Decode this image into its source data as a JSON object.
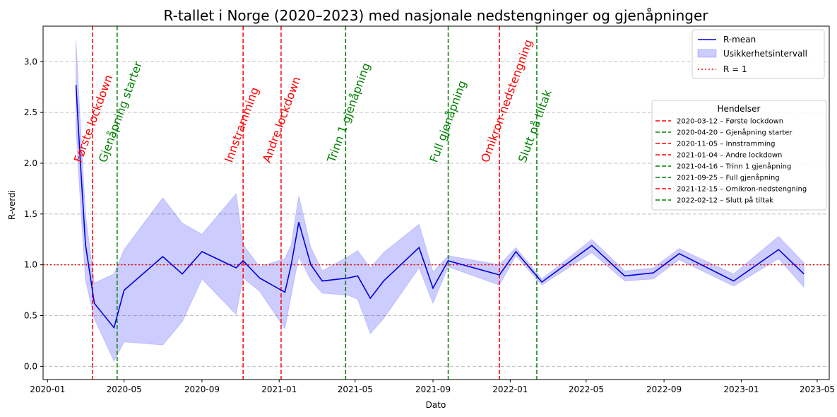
{
  "chart_data": {
    "type": "line",
    "title": "R-tallet i Norge (2020–2023) med nasjonale nedstengninger og gjenåpninger",
    "xlabel": "Dato",
    "ylabel": "R-verdi",
    "xlim": [
      "2019-12-25",
      "2023-05-20"
    ],
    "ylim": [
      -0.13,
      3.35
    ],
    "grid": "y-dashed",
    "x_ticks": [
      {
        "date": "2020-01-01",
        "label": "2020-01"
      },
      {
        "date": "2020-05-01",
        "label": "2020-05"
      },
      {
        "date": "2020-09-01",
        "label": "2020-09"
      },
      {
        "date": "2021-01-01",
        "label": "2021-01"
      },
      {
        "date": "2021-05-01",
        "label": "2021-05"
      },
      {
        "date": "2021-09-01",
        "label": "2021-09"
      },
      {
        "date": "2022-01-01",
        "label": "2022-01"
      },
      {
        "date": "2022-05-01",
        "label": "2022-05"
      },
      {
        "date": "2022-09-01",
        "label": "2022-09"
      },
      {
        "date": "2023-01-01",
        "label": "2023-01"
      },
      {
        "date": "2023-05-01",
        "label": "2023-05"
      }
    ],
    "y_ticks": [
      {
        "value": 0.0,
        "label": "0.0"
      },
      {
        "value": 0.5,
        "label": "0.5"
      },
      {
        "value": 1.0,
        "label": "1.0"
      },
      {
        "value": 1.5,
        "label": "1.5"
      },
      {
        "value": 2.0,
        "label": "2.0"
      },
      {
        "value": 2.5,
        "label": "2.5"
      },
      {
        "value": 3.0,
        "label": "3.0"
      }
    ],
    "series": [
      {
        "name": "R-mean",
        "color": "#0000dd",
        "points": [
          {
            "date": "2020-02-15",
            "mean": 2.77,
            "lower": 2.35,
            "upper": 3.21
          },
          {
            "date": "2020-02-21",
            "mean": 2.1,
            "lower": 1.7,
            "upper": 2.5
          },
          {
            "date": "2020-03-01",
            "mean": 1.2,
            "lower": 0.85,
            "upper": 1.5
          },
          {
            "date": "2020-03-15",
            "mean": 0.62,
            "lower": 0.47,
            "upper": 0.82
          },
          {
            "date": "2020-04-15",
            "mean": 0.38,
            "lower": 0.05,
            "upper": 0.91
          },
          {
            "date": "2020-05-01",
            "mean": 0.75,
            "lower": 0.24,
            "upper": 1.15
          },
          {
            "date": "2020-07-01",
            "mean": 1.08,
            "lower": 0.21,
            "upper": 1.66
          },
          {
            "date": "2020-08-01",
            "mean": 0.91,
            "lower": 0.44,
            "upper": 1.41
          },
          {
            "date": "2020-09-01",
            "mean": 1.13,
            "lower": 0.86,
            "upper": 1.3
          },
          {
            "date": "2020-10-25",
            "mean": 0.97,
            "lower": 0.51,
            "upper": 1.7
          },
          {
            "date": "2020-11-05",
            "mean": 1.04,
            "lower": 0.87,
            "upper": 1.2
          },
          {
            "date": "2020-12-01",
            "mean": 0.87,
            "lower": 0.74,
            "upper": 0.98
          },
          {
            "date": "2021-01-10",
            "mean": 0.73,
            "lower": 0.37,
            "upper": 1.06
          },
          {
            "date": "2021-01-20",
            "mean": 1.0,
            "lower": 0.7,
            "upper": 1.2
          },
          {
            "date": "2021-02-01",
            "mean": 1.42,
            "lower": 1.08,
            "upper": 1.68
          },
          {
            "date": "2021-02-20",
            "mean": 1.0,
            "lower": 0.85,
            "upper": 1.17
          },
          {
            "date": "2021-03-10",
            "mean": 0.84,
            "lower": 0.72,
            "upper": 0.94
          },
          {
            "date": "2021-04-20",
            "mean": 0.87,
            "lower": 0.7,
            "upper": 1.08
          },
          {
            "date": "2021-05-05",
            "mean": 0.89,
            "lower": 0.66,
            "upper": 1.14
          },
          {
            "date": "2021-05-25",
            "mean": 0.67,
            "lower": 0.32,
            "upper": 0.97
          },
          {
            "date": "2021-06-15",
            "mean": 0.84,
            "lower": 0.47,
            "upper": 1.12
          },
          {
            "date": "2021-08-10",
            "mean": 1.17,
            "lower": 0.97,
            "upper": 1.4
          },
          {
            "date": "2021-09-01",
            "mean": 0.77,
            "lower": 0.62,
            "upper": 0.93
          },
          {
            "date": "2021-09-25",
            "mean": 1.04,
            "lower": 0.98,
            "upper": 1.09
          },
          {
            "date": "2021-12-15",
            "mean": 0.9,
            "lower": 0.8,
            "upper": 1.0
          },
          {
            "date": "2022-01-10",
            "mean": 1.13,
            "lower": 1.09,
            "upper": 1.17
          },
          {
            "date": "2022-02-20",
            "mean": 0.83,
            "lower": 0.8,
            "upper": 0.86
          },
          {
            "date": "2022-05-10",
            "mean": 1.19,
            "lower": 1.12,
            "upper": 1.25
          },
          {
            "date": "2022-07-01",
            "mean": 0.89,
            "lower": 0.84,
            "upper": 0.94
          },
          {
            "date": "2022-08-15",
            "mean": 0.92,
            "lower": 0.86,
            "upper": 0.97
          },
          {
            "date": "2022-09-25",
            "mean": 1.11,
            "lower": 1.05,
            "upper": 1.16
          },
          {
            "date": "2022-12-20",
            "mean": 0.84,
            "lower": 0.79,
            "upper": 0.91
          },
          {
            "date": "2023-03-01",
            "mean": 1.15,
            "lower": 1.06,
            "upper": 1.28
          },
          {
            "date": "2023-04-10",
            "mean": 0.91,
            "lower": 0.78,
            "upper": 1.02
          }
        ]
      }
    ],
    "band": {
      "name": "Usikkerhetsintervall",
      "color": "#0000ff",
      "opacity": 0.2
    },
    "reference_line": {
      "name": "R = 1",
      "value": 1.0,
      "color": "#ff0000"
    },
    "events": [
      {
        "date": "2020-03-12",
        "label": "Første lockdown",
        "legend": "2020-03-12 – Første lockdown",
        "color": "#ff0000"
      },
      {
        "date": "2020-04-20",
        "label": "Gjenåpning starter",
        "legend": "2020-04-20 – Gjenåpning starter",
        "color": "#008000"
      },
      {
        "date": "2020-11-05",
        "label": "Innstramming",
        "legend": "2020-11-05 – Innstramming",
        "color": "#ff0000"
      },
      {
        "date": "2021-01-04",
        "label": "Andre lockdown",
        "legend": "2021-01-04 – Andre lockdown",
        "color": "#ff0000"
      },
      {
        "date": "2021-04-16",
        "label": "Trinn 1 gjenåpning",
        "legend": "2021-04-16 – Trinn 1 gjenåpning",
        "color": "#008000"
      },
      {
        "date": "2021-09-25",
        "label": "Full gjenåpning",
        "legend": "2021-09-25 – Full gjenåpning",
        "color": "#008000"
      },
      {
        "date": "2021-12-15",
        "label": "Omikron-nedstengning",
        "legend": "2021-12-15 – Omikron-nedstengning",
        "color": "#ff0000"
      },
      {
        "date": "2022-02-12",
        "label": "Slutt på tiltak",
        "legend": "2022-02-12 – Slutt på tiltak",
        "color": "#008000"
      }
    ],
    "legend_main": {
      "placement": "top-right",
      "entries": [
        "R-mean",
        "Usikkerhetsintervall",
        "R = 1"
      ]
    },
    "legend_events": {
      "title": "Hendelser",
      "placement": "right"
    }
  }
}
